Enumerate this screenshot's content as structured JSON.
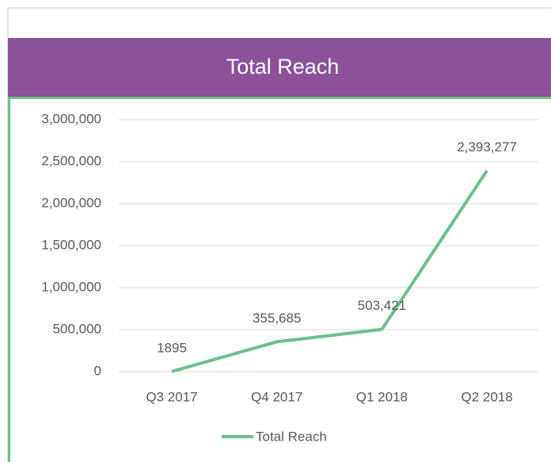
{
  "chart_data": {
    "type": "line",
    "title": "Total Reach",
    "categories": [
      "Q3 2017",
      "Q4 2017",
      "Q1 2018",
      "Q2 2018"
    ],
    "series": [
      {
        "name": "Total Reach",
        "color": "#6dbf8b",
        "values": [
          1895,
          355685,
          503421,
          2393277
        ],
        "value_labels": [
          "1895",
          "355,685",
          "503,421",
          "2,393,277"
        ]
      }
    ],
    "ylim": [
      0,
      3000000
    ],
    "yticks": [
      0,
      {
        "value": 500000,
        "label": "500,000"
      },
      {
        "value": 1000000,
        "label": "1,000,000"
      },
      {
        "value": 1500000,
        "label": "1,500,000"
      },
      {
        "value": 2000000,
        "label": "2,000,000"
      },
      {
        "value": 2500000,
        "label": "2,500,000"
      },
      {
        "value": 3000000,
        "label": "3,000,000"
      }
    ],
    "grid": true,
    "legend": "bottom"
  }
}
